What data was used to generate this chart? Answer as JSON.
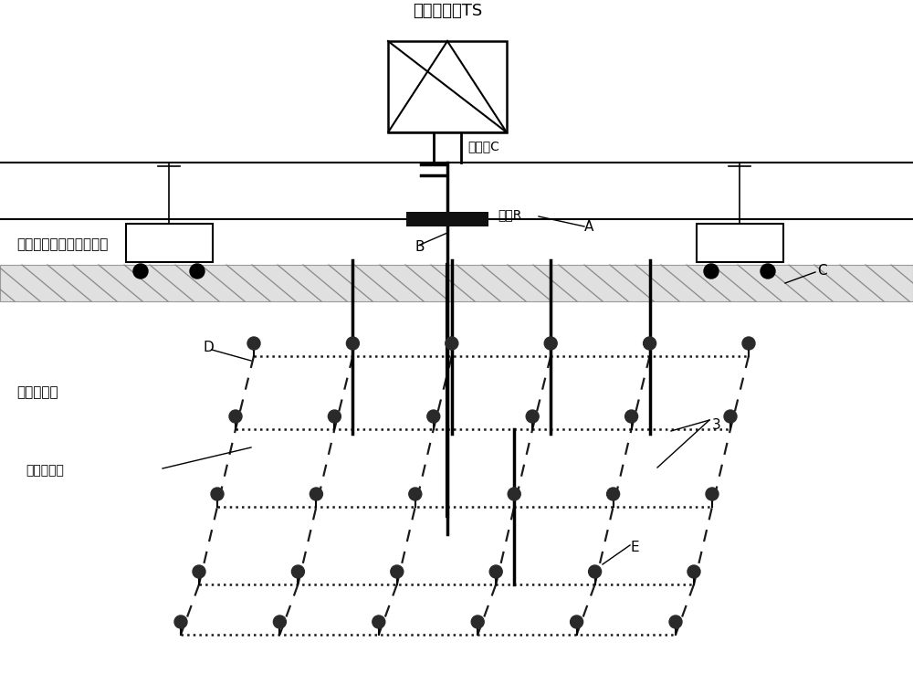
{
  "title": "牵引变电所TS",
  "label_contact": "接触纼C",
  "label_rail": "钉轨R",
  "label_soil": "接地网络埋设区域土壤：",
  "label_ground_net": "接地网络：",
  "label_ground_lead": "接地引下线",
  "label_A": "A",
  "label_B": "B",
  "label_C": "C",
  "label_D": "D",
  "label_E": "E",
  "label_3": "3",
  "bg_color": "#ffffff",
  "line_color": "#000000",
  "dashed_color": "#1a1a1a",
  "dotted_color": "#1a1a1a"
}
